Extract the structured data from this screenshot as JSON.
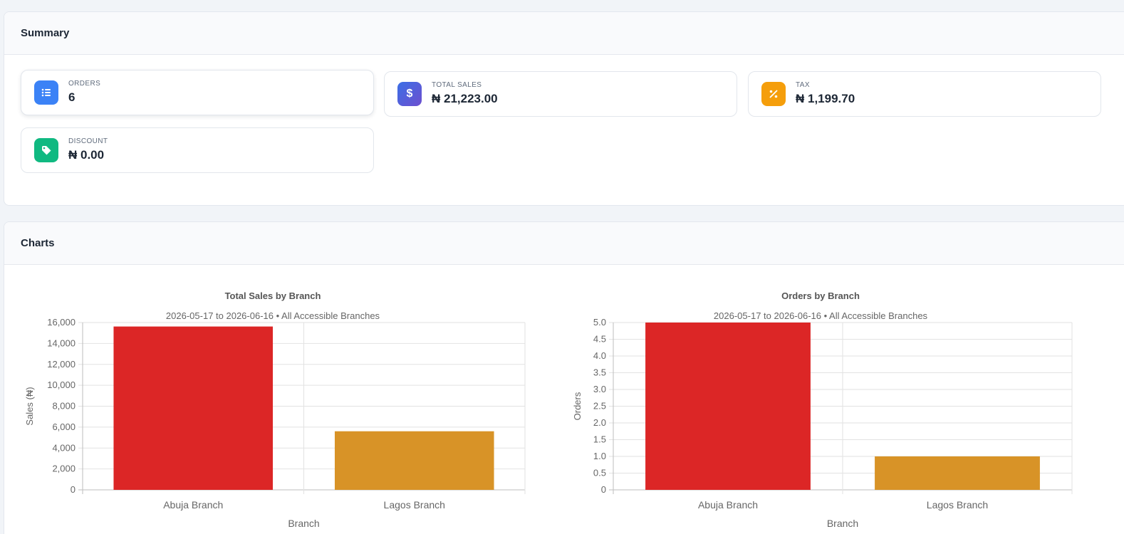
{
  "summary": {
    "title": "Summary",
    "stats": [
      {
        "label": "ORDERS",
        "value": "6",
        "icon": "list-icon",
        "color": "#3b82f6"
      },
      {
        "label": "TOTAL SALES",
        "value": "₦ 21,223.00",
        "icon": "dollar-icon",
        "color": "#4f5fd8"
      },
      {
        "label": "TAX",
        "value": "₦ 1,199.70",
        "icon": "percent-icon",
        "color": "#f59e0b"
      },
      {
        "label": "DISCOUNT",
        "value": "₦ 0.00",
        "icon": "tag-icon",
        "color": "#10b981"
      }
    ]
  },
  "charts": {
    "title": "Charts"
  },
  "chart_data": [
    {
      "type": "bar",
      "title": "Total Sales by Branch",
      "subtitle": "2026-05-17 to 2026-06-16 • All Accessible Branches",
      "categories": [
        "Abuja Branch",
        "Lagos Branch"
      ],
      "values": [
        15620,
        5603
      ],
      "colors": [
        "#dc2626",
        "#d89327"
      ],
      "xlabel": "Branch",
      "ylabel": "Sales (₦)",
      "ylim": [
        0,
        16000
      ],
      "yticks": [
        "0",
        "2,000",
        "4,000",
        "6,000",
        "8,000",
        "10,000",
        "12,000",
        "14,000",
        "16,000"
      ],
      "grid": true,
      "legend": "none"
    },
    {
      "type": "bar",
      "title": "Orders by Branch",
      "subtitle": "2026-05-17 to 2026-06-16 • All Accessible Branches",
      "categories": [
        "Abuja Branch",
        "Lagos Branch"
      ],
      "values": [
        5,
        1
      ],
      "colors": [
        "#dc2626",
        "#d89327"
      ],
      "xlabel": "Branch",
      "ylabel": "Orders",
      "ylim": [
        0,
        5
      ],
      "yticks": [
        "0",
        "0.5",
        "1.0",
        "1.5",
        "2.0",
        "2.5",
        "3.0",
        "3.5",
        "4.0",
        "4.5",
        "5.0"
      ],
      "grid": true,
      "legend": "none"
    }
  ]
}
